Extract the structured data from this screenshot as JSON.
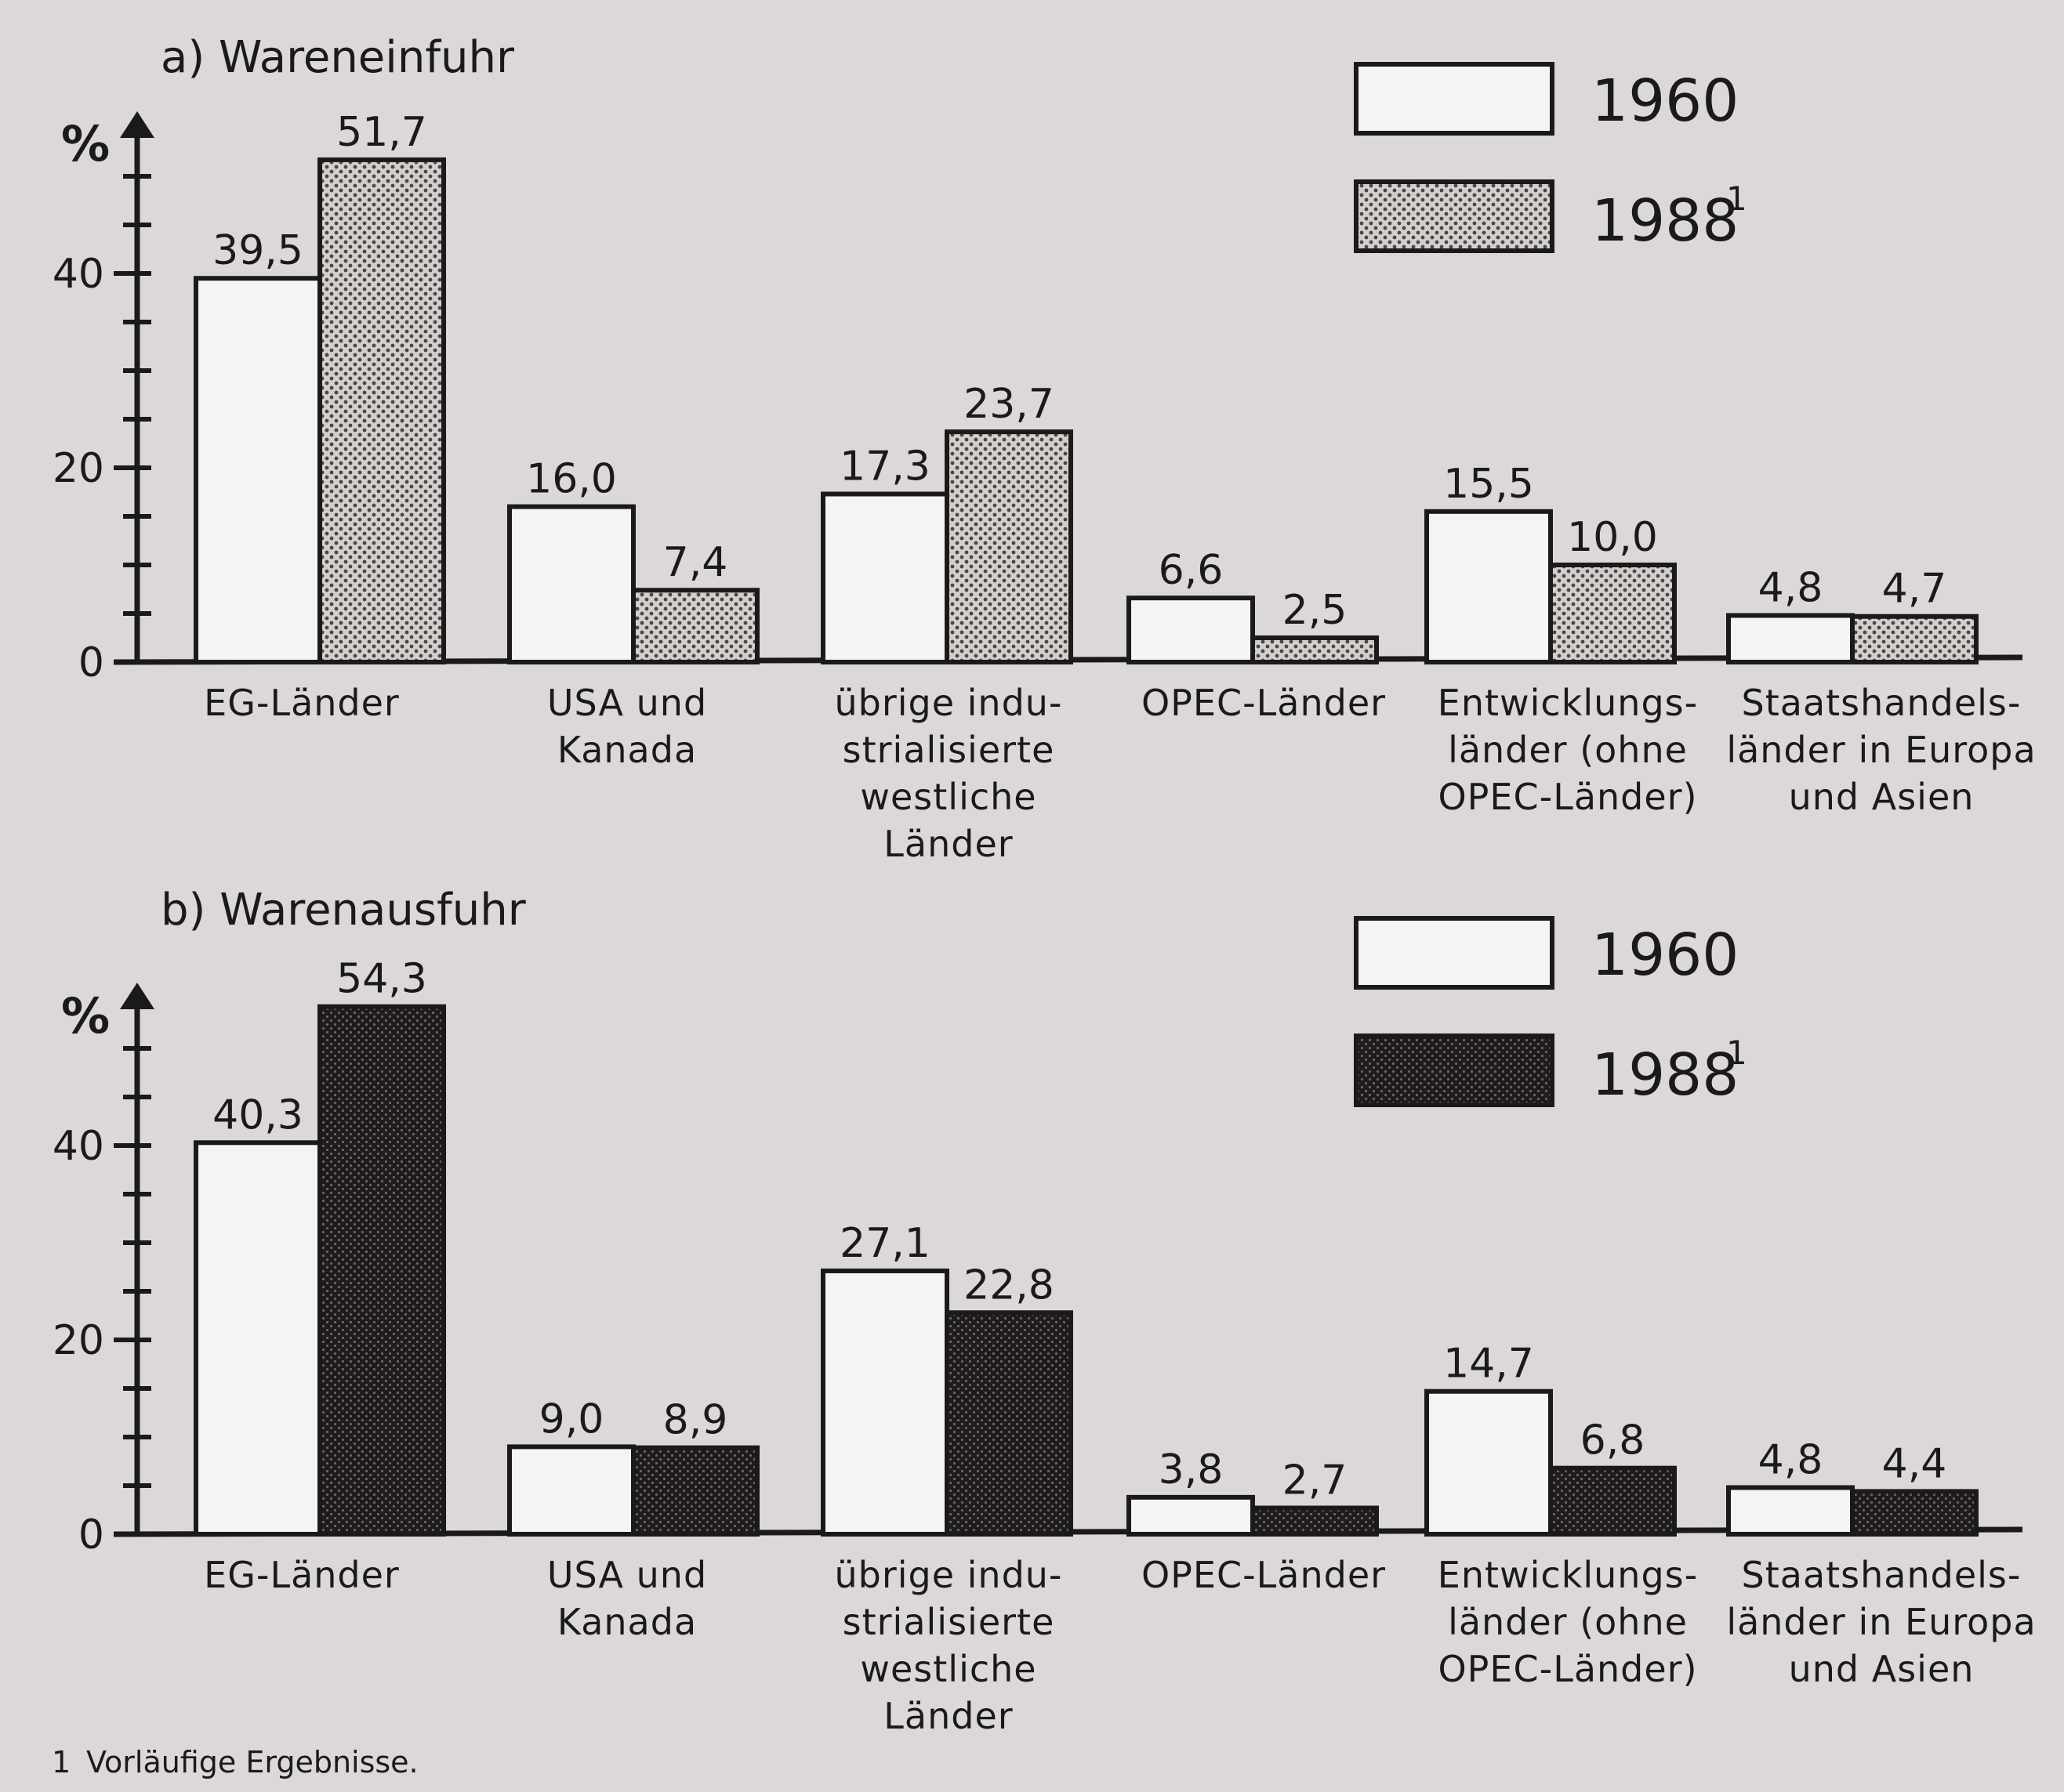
{
  "legend": {
    "label_1960": "1960",
    "label_1988": "1988",
    "sup_1988": "1"
  },
  "footnote": {
    "mark": "1",
    "text": "Vorläufige Ergebnisse."
  },
  "colors": {
    "background": "#dcd8d7",
    "bar_1960": "#f4f4f2",
    "bar_1988_import": "#b9b5b2",
    "bar_1988_export": "#2a2626"
  },
  "chart_data": [
    {
      "type": "bar",
      "title": "a) Wareneinfuhr",
      "ylabel": "%",
      "ylim": [
        0,
        55
      ],
      "yticks": [
        "0",
        "20",
        "40"
      ],
      "categories": [
        [
          "EG-Länder"
        ],
        [
          "USA und",
          "Kanada"
        ],
        [
          "übrige indu-",
          "strialisierte",
          "westliche",
          "Länder"
        ],
        [
          "OPEC-Länder"
        ],
        [
          "Entwicklungs-",
          "länder (ohne",
          "OPEC-Länder)"
        ],
        [
          "Staatshandels-",
          "länder in Europa",
          "und Asien"
        ]
      ],
      "series": [
        {
          "name": "1960",
          "values": [
            39.5,
            16.0,
            17.3,
            6.6,
            15.5,
            4.8
          ],
          "labels": [
            "39,5",
            "16,0",
            "17,3",
            "6,6",
            "15,5",
            "4,8"
          ]
        },
        {
          "name": "1988",
          "values": [
            51.7,
            7.4,
            23.7,
            2.5,
            10.0,
            4.7
          ],
          "labels": [
            "51,7",
            "7,4",
            "23,7",
            "2,5",
            "10,0",
            "4,7"
          ]
        }
      ]
    },
    {
      "type": "bar",
      "title": "b) Warenausfuhr",
      "ylabel": "%",
      "ylim": [
        0,
        55
      ],
      "yticks": [
        "0",
        "20",
        "40"
      ],
      "categories": [
        [
          "EG-Länder"
        ],
        [
          "USA und",
          "Kanada"
        ],
        [
          "übrige indu-",
          "strialisierte",
          "westliche",
          "Länder"
        ],
        [
          "OPEC-Länder"
        ],
        [
          "Entwicklungs-",
          "länder (ohne",
          "OPEC-Länder)"
        ],
        [
          "Staatshandels-",
          "länder in Europa",
          "und Asien"
        ]
      ],
      "series": [
        {
          "name": "1960",
          "values": [
            40.3,
            9.0,
            27.1,
            3.8,
            14.7,
            4.8
          ],
          "labels": [
            "40,3",
            "9,0",
            "27,1",
            "3,8",
            "14,7",
            "4,8"
          ]
        },
        {
          "name": "1988",
          "values": [
            54.3,
            8.9,
            22.8,
            2.7,
            6.8,
            4.4
          ],
          "labels": [
            "54,3",
            "8,9",
            "22,8",
            "2,7",
            "6,8",
            "4,4"
          ]
        }
      ]
    }
  ]
}
